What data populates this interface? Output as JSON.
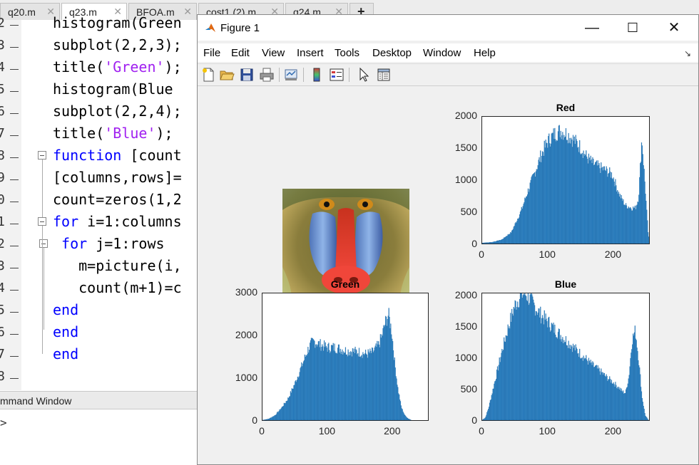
{
  "editor": {
    "tabs": [
      {
        "label": "q20.m"
      },
      {
        "label": "q23.m"
      },
      {
        "label": "BFOA.m"
      },
      {
        "label": "cost1 (2).m"
      },
      {
        "label": "q24.m"
      }
    ],
    "new_tab_label": "+",
    "line_numbers": [
      "2",
      "3",
      "4",
      "5",
      "6",
      "7",
      "8",
      "9",
      "0",
      "1",
      "2",
      "3",
      "4",
      "5",
      "6",
      "7",
      "8"
    ],
    "lines": [
      {
        "pre": "histogram(Green",
        "kw": "",
        "str": "",
        "post": ""
      },
      {
        "pre": "subplot(2,2,3);",
        "kw": "",
        "str": "",
        "post": ""
      },
      {
        "pre": "title(",
        "kw": "",
        "str": "'Green'",
        "post": ");"
      },
      {
        "pre": "histogram(Blue",
        "kw": "",
        "str": "",
        "post": ""
      },
      {
        "pre": "subplot(2,2,4);",
        "kw": "",
        "str": "",
        "post": ""
      },
      {
        "pre": "title(",
        "kw": "",
        "str": "'Blue'",
        "post": ");"
      },
      {
        "pre": "",
        "kw": "function",
        "str": "",
        "post": " [count"
      },
      {
        "pre": "[columns,rows]=",
        "kw": "",
        "str": "",
        "post": ""
      },
      {
        "pre": "count=zeros(1,2",
        "kw": "",
        "str": "",
        "post": ""
      },
      {
        "pre": "",
        "kw": "for",
        "str": "",
        "post": " i=1:columns"
      },
      {
        "pre": " ",
        "kw": "for",
        "str": "",
        "post": " j=1:rows"
      },
      {
        "pre": "   m=picture(i,",
        "kw": "",
        "str": "",
        "post": ""
      },
      {
        "pre": "   count(m+1)=c",
        "kw": "",
        "str": "",
        "post": ""
      },
      {
        "pre": "",
        "kw": "end",
        "str": "",
        "post": ""
      },
      {
        "pre": "",
        "kw": "end",
        "str": "",
        "post": ""
      },
      {
        "pre": "",
        "kw": "end",
        "str": "",
        "post": ""
      }
    ],
    "command_window_label": "mmand Window",
    "prompt": ">"
  },
  "figure": {
    "title": "Figure 1",
    "window_controls": {
      "minimize": "—",
      "maximize": "☐",
      "close": "✕"
    },
    "menu": [
      "File",
      "Edit",
      "View",
      "Insert",
      "Tools",
      "Desktop",
      "Window",
      "Help"
    ],
    "menu_arrow": "↘",
    "toolbar_icons": [
      "new-figure-icon",
      "open-file-icon",
      "save-icon",
      "print-icon",
      "print-preview-icon",
      "colorbar-icon",
      "legend-icon",
      "edit-plot-arrow-icon",
      "property-inspector-icon"
    ]
  },
  "colors": {
    "bar": "#2e86c7",
    "bar_dark": "#1b62a0",
    "keyword": "#0000ff",
    "string": "#a020f0"
  },
  "chart_data": [
    {
      "type": "bar",
      "title": "Red",
      "xlim": [
        0,
        256
      ],
      "ylim": [
        0,
        2000
      ],
      "xticks": [
        0,
        100,
        200
      ],
      "yticks": [
        0,
        500,
        1000,
        1500,
        2000
      ],
      "profile_x": [
        0,
        15,
        30,
        45,
        60,
        70,
        80,
        90,
        100,
        110,
        120,
        130,
        140,
        150,
        160,
        170,
        180,
        190,
        200,
        210,
        220,
        230,
        235,
        240,
        245,
        250,
        255
      ],
      "profile_y": [
        10,
        20,
        60,
        180,
        520,
        820,
        1100,
        1380,
        1600,
        1720,
        1780,
        1730,
        1640,
        1530,
        1370,
        1260,
        1200,
        1150,
        1080,
        780,
        600,
        560,
        560,
        720,
        1680,
        900,
        100
      ]
    },
    {
      "type": "bar",
      "title": "Green",
      "xlim": [
        0,
        256
      ],
      "ylim": [
        0,
        3000
      ],
      "xticks": [
        0,
        100,
        200
      ],
      "yticks": [
        0,
        1000,
        2000,
        3000
      ],
      "profile_x": [
        0,
        10,
        20,
        30,
        40,
        50,
        60,
        65,
        70,
        75,
        80,
        90,
        100,
        110,
        120,
        130,
        140,
        150,
        160,
        170,
        180,
        185,
        190,
        195,
        200,
        205,
        210,
        215,
        220,
        225,
        230,
        255
      ],
      "profile_y": [
        0,
        30,
        120,
        300,
        520,
        860,
        1250,
        1450,
        1650,
        1800,
        1860,
        1780,
        1720,
        1720,
        1690,
        1640,
        1630,
        1610,
        1560,
        1600,
        1780,
        2000,
        2300,
        2500,
        2100,
        1300,
        700,
        300,
        120,
        40,
        0,
        0
      ]
    },
    {
      "type": "bar",
      "title": "Blue",
      "xlim": [
        0,
        256
      ],
      "ylim": [
        0,
        2050
      ],
      "xticks": [
        0,
        100,
        200
      ],
      "yticks": [
        0,
        500,
        1000,
        1500,
        2000
      ],
      "profile_x": [
        0,
        5,
        10,
        20,
        30,
        40,
        50,
        60,
        65,
        70,
        80,
        90,
        100,
        110,
        120,
        130,
        140,
        150,
        160,
        170,
        180,
        190,
        200,
        210,
        215,
        220,
        225,
        230,
        235,
        240,
        245,
        250,
        255
      ],
      "profile_y": [
        0,
        40,
        200,
        650,
        1100,
        1500,
        1850,
        2030,
        2050,
        2000,
        1850,
        1700,
        1600,
        1480,
        1380,
        1280,
        1180,
        1080,
        980,
        880,
        800,
        700,
        620,
        520,
        460,
        440,
        700,
        1300,
        1450,
        1000,
        400,
        80,
        0
      ]
    }
  ]
}
